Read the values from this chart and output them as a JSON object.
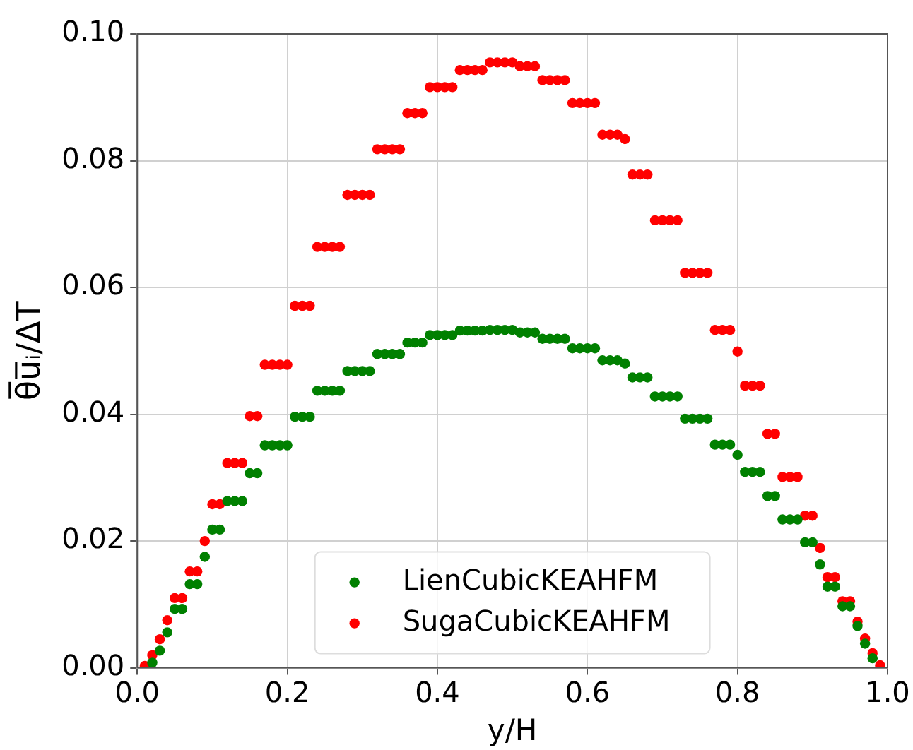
{
  "chart_data": {
    "type": "scatter",
    "xlabel": "y/H",
    "ylabel": "θ̅u̅ᵢ/ΔT",
    "x": [
      0.01,
      0.02,
      0.03,
      0.04,
      0.05,
      0.06,
      0.07,
      0.08,
      0.09,
      0.1,
      0.11,
      0.12,
      0.13,
      0.14,
      0.15,
      0.16,
      0.17,
      0.18,
      0.19,
      0.2,
      0.21,
      0.22,
      0.23,
      0.24,
      0.25,
      0.26,
      0.27,
      0.28,
      0.29,
      0.3,
      0.31,
      0.32,
      0.33,
      0.34,
      0.35,
      0.36,
      0.37,
      0.38,
      0.39,
      0.4,
      0.41,
      0.42,
      0.43,
      0.44,
      0.45,
      0.46,
      0.47,
      0.48,
      0.49,
      0.5,
      0.51,
      0.52,
      0.53,
      0.54,
      0.55,
      0.56,
      0.57,
      0.58,
      0.59,
      0.6,
      0.61,
      0.62,
      0.63,
      0.64,
      0.65,
      0.66,
      0.67,
      0.68,
      0.69,
      0.7,
      0.71,
      0.72,
      0.73,
      0.74,
      0.75,
      0.76,
      0.77,
      0.78,
      0.79,
      0.8,
      0.81,
      0.82,
      0.83,
      0.84,
      0.85,
      0.86,
      0.87,
      0.88,
      0.89,
      0.9,
      0.91,
      0.92,
      0.93,
      0.94,
      0.95,
      0.96,
      0.97,
      0.98,
      0.99
    ],
    "series": [
      {
        "name": "LienCubicKEAHFM",
        "color": "#008000",
        "values": [
          null,
          0.0008,
          0.0027,
          0.0056,
          0.0093,
          0.0093,
          0.0132,
          0.0132,
          0.0175,
          0.0218,
          0.0218,
          0.0263,
          0.0263,
          0.0263,
          0.0307,
          0.0307,
          0.0351,
          0.0351,
          0.0351,
          0.0351,
          0.0396,
          0.0396,
          0.0396,
          0.0437,
          0.0437,
          0.0437,
          0.0437,
          0.0468,
          0.0468,
          0.0468,
          0.0468,
          0.0495,
          0.0495,
          0.0495,
          0.0495,
          0.0513,
          0.0513,
          0.0513,
          0.0525,
          0.0525,
          0.0525,
          0.0525,
          0.0532,
          0.0532,
          0.0532,
          0.0532,
          0.0533,
          0.0533,
          0.0533,
          0.0533,
          0.0529,
          0.0529,
          0.0529,
          0.0519,
          0.0519,
          0.0519,
          0.0519,
          0.0504,
          0.0504,
          0.0504,
          0.0504,
          0.0485,
          0.0485,
          0.0485,
          0.048,
          0.0458,
          0.0458,
          0.0458,
          0.0428,
          0.0428,
          0.0428,
          0.0428,
          0.0393,
          0.0393,
          0.0393,
          0.0393,
          0.0352,
          0.0352,
          0.0352,
          0.0336,
          0.0309,
          0.0309,
          0.0309,
          0.0271,
          0.0271,
          0.0234,
          0.0234,
          0.0234,
          0.0198,
          0.0198,
          0.0163,
          0.0128,
          0.0128,
          0.0097,
          0.0097,
          0.0066,
          0.0038,
          0.0015,
          null
        ]
      },
      {
        "name": "SugaCubicKEAHFM",
        "color": "#ff0000",
        "values": [
          0.0003,
          0.002,
          0.0045,
          0.0075,
          0.011,
          0.011,
          0.0152,
          0.0152,
          0.02,
          0.0258,
          0.0258,
          0.0323,
          0.0323,
          0.0323,
          0.0397,
          0.0397,
          0.0478,
          0.0478,
          0.0478,
          0.0478,
          0.0571,
          0.0571,
          0.0571,
          0.0664,
          0.0664,
          0.0664,
          0.0664,
          0.0746,
          0.0746,
          0.0746,
          0.0746,
          0.0818,
          0.0818,
          0.0818,
          0.0818,
          0.0875,
          0.0875,
          0.0875,
          0.0916,
          0.0916,
          0.0916,
          0.0916,
          0.0943,
          0.0943,
          0.0943,
          0.0943,
          0.0955,
          0.0955,
          0.0955,
          0.0955,
          0.0949,
          0.0949,
          0.0949,
          0.0927,
          0.0927,
          0.0927,
          0.0927,
          0.0891,
          0.0891,
          0.0891,
          0.0891,
          0.0841,
          0.0841,
          0.0841,
          0.0834,
          0.0778,
          0.0778,
          0.0778,
          0.0706,
          0.0706,
          0.0706,
          0.0706,
          0.0623,
          0.0623,
          0.0623,
          0.0623,
          0.0533,
          0.0533,
          0.0533,
          0.0499,
          0.0445,
          0.0445,
          0.0445,
          0.0369,
          0.0369,
          0.0301,
          0.0301,
          0.0301,
          0.024,
          0.024,
          0.0189,
          0.0143,
          0.0143,
          0.0105,
          0.0105,
          0.0073,
          0.0046,
          0.0023,
          0.0004
        ]
      }
    ],
    "xlim": [
      0.0,
      1.0
    ],
    "xticks": [
      {
        "value": 0,
        "label": "0.0"
      },
      {
        "value": 0.2,
        "label": "0.2"
      },
      {
        "value": 0.4,
        "label": "0.4"
      },
      {
        "value": 0.6,
        "label": "0.6"
      },
      {
        "value": 0.8,
        "label": "0.8"
      },
      {
        "value": 1,
        "label": "1.0"
      }
    ],
    "ylim": [
      0.0,
      0.1
    ],
    "yticks": [
      {
        "value": 0,
        "label": "0.00"
      },
      {
        "value": 0.02,
        "label": "0.02"
      },
      {
        "value": 0.04,
        "label": "0.04"
      },
      {
        "value": 0.06,
        "label": "0.06"
      },
      {
        "value": 0.08,
        "label": "0.08"
      },
      {
        "value": 0.1,
        "label": "0.10"
      }
    ],
    "grid": true,
    "legend": "bottom",
    "marker": "circle"
  }
}
